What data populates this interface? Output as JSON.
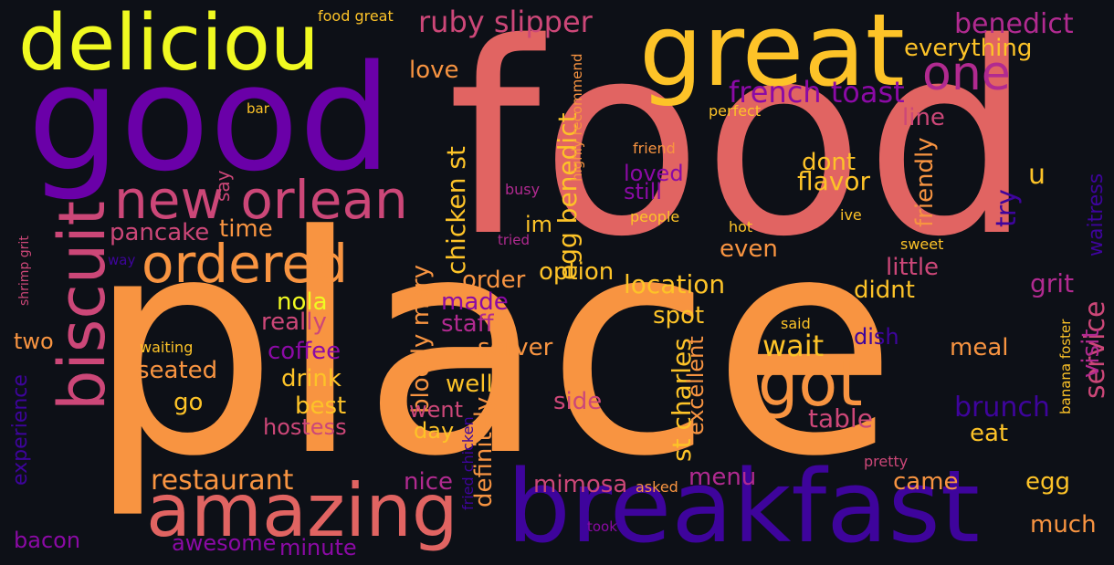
{
  "palette": {
    "background": "#0d1017",
    "yellow": "#f0f921",
    "gold": "#fdc328",
    "orange": "#f89441",
    "coral": "#e16462",
    "magenta": "#b12a90",
    "purple": "#6a00a8",
    "indigo": "#3e049c"
  },
  "words": [
    {
      "text": "food",
      "color": "#e16462",
      "vertical": false
    },
    {
      "text": "place",
      "color": "#f89441",
      "vertical": false
    },
    {
      "text": "good",
      "color": "#6a00a8",
      "vertical": false
    },
    {
      "text": "great",
      "color": "#fdc328",
      "vertical": false
    },
    {
      "text": "breakfast",
      "color": "#3e049c",
      "vertical": false
    },
    {
      "text": "deliciou",
      "color": "#f0f921",
      "vertical": false
    },
    {
      "text": "amazing",
      "color": "#e16462",
      "vertical": false
    },
    {
      "text": "biscuit",
      "color": "#cc4778",
      "vertical": true
    },
    {
      "text": "new orlean",
      "color": "#cc4778",
      "vertical": false
    },
    {
      "text": "ordered",
      "color": "#f89441",
      "vertical": false
    },
    {
      "text": "got",
      "color": "#f89441",
      "vertical": false
    },
    {
      "text": "one",
      "color": "#b12a90",
      "vertical": false
    },
    {
      "text": "ruby slipper",
      "color": "#cc4778",
      "vertical": false
    },
    {
      "text": "french toast",
      "color": "#8b0aa5",
      "vertical": false
    },
    {
      "text": "benedict",
      "color": "#b12a90",
      "vertical": false
    },
    {
      "text": "everything",
      "color": "#fdc328",
      "vertical": false
    },
    {
      "text": "restaurant",
      "color": "#f89441",
      "vertical": false
    },
    {
      "text": "wait",
      "color": "#fdc328",
      "vertical": false
    },
    {
      "text": "brunch",
      "color": "#3e049c",
      "vertical": false
    },
    {
      "text": "service",
      "color": "#cc4778",
      "vertical": true
    },
    {
      "text": "st charles",
      "color": "#fdc328",
      "vertical": true
    },
    {
      "text": "egg benedict",
      "color": "#fdc328",
      "vertical": true
    },
    {
      "text": "chicken st",
      "color": "#fdc328",
      "vertical": true
    },
    {
      "text": "bloody mary",
      "color": "#f89441",
      "vertical": true
    },
    {
      "text": "definitely",
      "color": "#f89441",
      "vertical": true
    },
    {
      "text": "location",
      "color": "#fdc328",
      "vertical": false
    },
    {
      "text": "experience",
      "color": "#3e049c",
      "vertical": true
    },
    {
      "text": "friendly",
      "color": "#f89441",
      "vertical": true
    },
    {
      "text": "excellent",
      "color": "#f89441",
      "vertical": true
    },
    {
      "text": "pancake",
      "color": "#cc4778",
      "vertical": false
    },
    {
      "text": "coffee",
      "color": "#8b0aa5",
      "vertical": false
    },
    {
      "text": "drink",
      "color": "#fdc328",
      "vertical": false
    },
    {
      "text": "best",
      "color": "#fdc328",
      "vertical": false
    },
    {
      "text": "hostess",
      "color": "#cc4778",
      "vertical": false
    },
    {
      "text": "seated",
      "color": "#f89441",
      "vertical": false
    },
    {
      "text": "really",
      "color": "#cc4778",
      "vertical": false
    },
    {
      "text": "server",
      "color": "#f89441",
      "vertical": false
    },
    {
      "text": "staff",
      "color": "#b12a90",
      "vertical": false
    },
    {
      "text": "option",
      "color": "#fdc328",
      "vertical": false
    },
    {
      "text": "order",
      "color": "#f89441",
      "vertical": false
    },
    {
      "text": "mimosa",
      "color": "#cc4778",
      "vertical": false
    },
    {
      "text": "table",
      "color": "#cc4778",
      "vertical": false
    },
    {
      "text": "meal",
      "color": "#f89441",
      "vertical": false
    },
    {
      "text": "came",
      "color": "#f89441",
      "vertical": false
    },
    {
      "text": "egg",
      "color": "#fdc328",
      "vertical": false
    },
    {
      "text": "much",
      "color": "#f89441",
      "vertical": false
    },
    {
      "text": "grit",
      "color": "#b12a90",
      "vertical": false
    },
    {
      "text": "little",
      "color": "#cc4778",
      "vertical": false
    },
    {
      "text": "line",
      "color": "#cc4778",
      "vertical": false
    },
    {
      "text": "flavor",
      "color": "#fdc328",
      "vertical": false
    },
    {
      "text": "dont",
      "color": "#fdc328",
      "vertical": false
    },
    {
      "text": "loved",
      "color": "#8b0aa5",
      "vertical": false
    },
    {
      "text": "still",
      "color": "#8b0aa5",
      "vertical": false
    },
    {
      "text": "even",
      "color": "#f89441",
      "vertical": false
    },
    {
      "text": "didnt",
      "color": "#fdc328",
      "vertical": false
    },
    {
      "text": "spot",
      "color": "#fdc328",
      "vertical": false
    },
    {
      "text": "well",
      "color": "#fdc328",
      "vertical": false
    },
    {
      "text": "went",
      "color": "#cc4778",
      "vertical": false
    },
    {
      "text": "day",
      "color": "#fdc328",
      "vertical": false
    },
    {
      "text": "side",
      "color": "#cc4778",
      "vertical": false
    },
    {
      "text": "menu",
      "color": "#b12a90",
      "vertical": false
    },
    {
      "text": "nice",
      "color": "#b12a90",
      "vertical": false
    },
    {
      "text": "made",
      "color": "#8b0aa5",
      "vertical": false
    },
    {
      "text": "im",
      "color": "#fdc328",
      "vertical": false
    },
    {
      "text": "time",
      "color": "#f89441",
      "vertical": false
    },
    {
      "text": "nola",
      "color": "#f0f921",
      "vertical": false
    },
    {
      "text": "two",
      "color": "#f89441",
      "vertical": false
    },
    {
      "text": "go",
      "color": "#fdc328",
      "vertical": false
    },
    {
      "text": "bacon",
      "color": "#8b0aa5",
      "vertical": false
    },
    {
      "text": "awesome",
      "color": "#8b0aa5",
      "vertical": false
    },
    {
      "text": "minute",
      "color": "#8b0aa5",
      "vertical": false
    },
    {
      "text": "love",
      "color": "#f89441",
      "vertical": false
    },
    {
      "text": "visit",
      "color": "#b12a90",
      "vertical": true
    },
    {
      "text": "waitress",
      "color": "#3e049c",
      "vertical": true
    },
    {
      "text": "try",
      "color": "#3e049c",
      "vertical": true
    },
    {
      "text": "u",
      "color": "#fdc328",
      "vertical": false
    },
    {
      "text": "dish",
      "color": "#3e049c",
      "vertical": false
    },
    {
      "text": "eat",
      "color": "#fdc328",
      "vertical": false
    },
    {
      "text": "say",
      "color": "#cc4778",
      "vertical": true
    },
    {
      "text": "food great",
      "color": "#fdc328",
      "vertical": false
    },
    {
      "text": "bar",
      "color": "#fdc328",
      "vertical": false
    },
    {
      "text": "perfect",
      "color": "#fdc328",
      "vertical": false
    },
    {
      "text": "friend",
      "color": "#f89441",
      "vertical": false
    },
    {
      "text": "busy",
      "color": "#b12a90",
      "vertical": false
    },
    {
      "text": "tried",
      "color": "#b12a90",
      "vertical": false
    },
    {
      "text": "people",
      "color": "#fdc328",
      "vertical": false
    },
    {
      "text": "hot",
      "color": "#fdc328",
      "vertical": false
    },
    {
      "text": "ive",
      "color": "#fdc328",
      "vertical": false
    },
    {
      "text": "sweet",
      "color": "#fdc328",
      "vertical": false
    },
    {
      "text": "back",
      "color": "#f89441",
      "vertical": false
    },
    {
      "text": "said",
      "color": "#fdc328",
      "vertical": false
    },
    {
      "text": "waiting",
      "color": "#fdc328",
      "vertical": false
    },
    {
      "text": "way",
      "color": "#3e049c",
      "vertical": false
    },
    {
      "text": "asked",
      "color": "#f89441",
      "vertical": false
    },
    {
      "text": "pretty",
      "color": "#cc4778",
      "vertical": false
    },
    {
      "text": "took",
      "color": "#8b0aa5",
      "vertical": false
    },
    {
      "text": "highly recommend",
      "color": "#f89441",
      "vertical": true
    },
    {
      "text": "shrimp grit",
      "color": "#cc4778",
      "vertical": true
    },
    {
      "text": "fried chicken",
      "color": "#3e049c",
      "vertical": true
    },
    {
      "text": "banana foster",
      "color": "#fdc328",
      "vertical": true
    }
  ]
}
